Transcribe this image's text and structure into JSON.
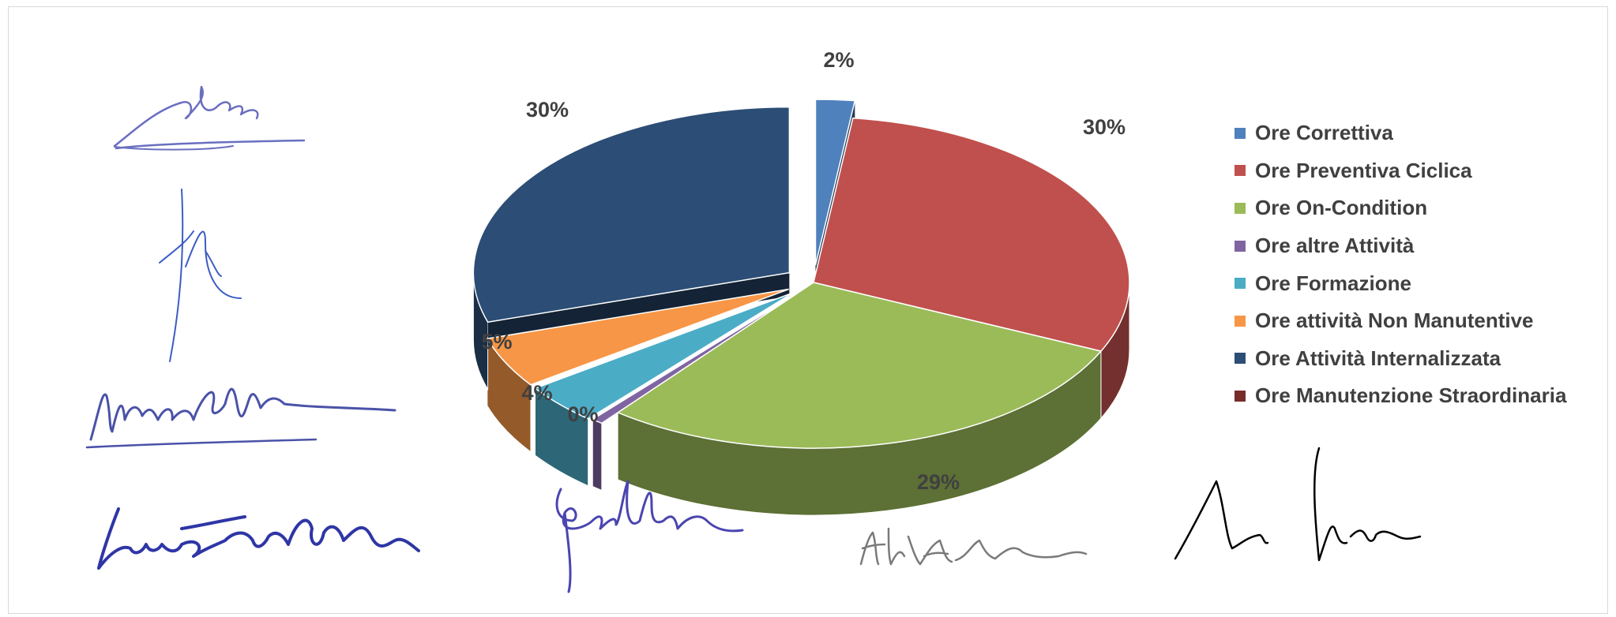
{
  "chart_data": {
    "type": "pie",
    "title": "",
    "categories": [
      "Ore Correttiva",
      "Ore Preventiva Ciclica",
      "Ore On-Condition",
      "Ore altre Attività",
      "Ore Formazione",
      "Ore attività Non Manutentive",
      "Ore Attività Internalizzata",
      "Ore Manutenzione Straordinaria"
    ],
    "values": [
      2,
      30,
      29,
      0,
      4,
      5,
      30,
      0
    ],
    "labels": [
      "2%",
      "30%",
      "29%",
      "0%",
      "4%",
      "5%",
      "30%",
      ""
    ],
    "colors": [
      "#4F81BD",
      "#C0504D",
      "#9BBB59",
      "#8064A2",
      "#4BACC6",
      "#F79646",
      "#2C4D75",
      "#772C2A"
    ],
    "legend_position": "right",
    "style": "3d-exploded"
  },
  "signatures": [
    {
      "name": "signature-1",
      "text": ""
    },
    {
      "name": "signature-2",
      "text": ""
    },
    {
      "name": "signature-3",
      "text": ""
    },
    {
      "name": "signature-4",
      "text": ""
    },
    {
      "name": "signature-5",
      "text": ""
    },
    {
      "name": "signature-6",
      "text": ""
    },
    {
      "name": "signature-7",
      "text": ""
    }
  ]
}
